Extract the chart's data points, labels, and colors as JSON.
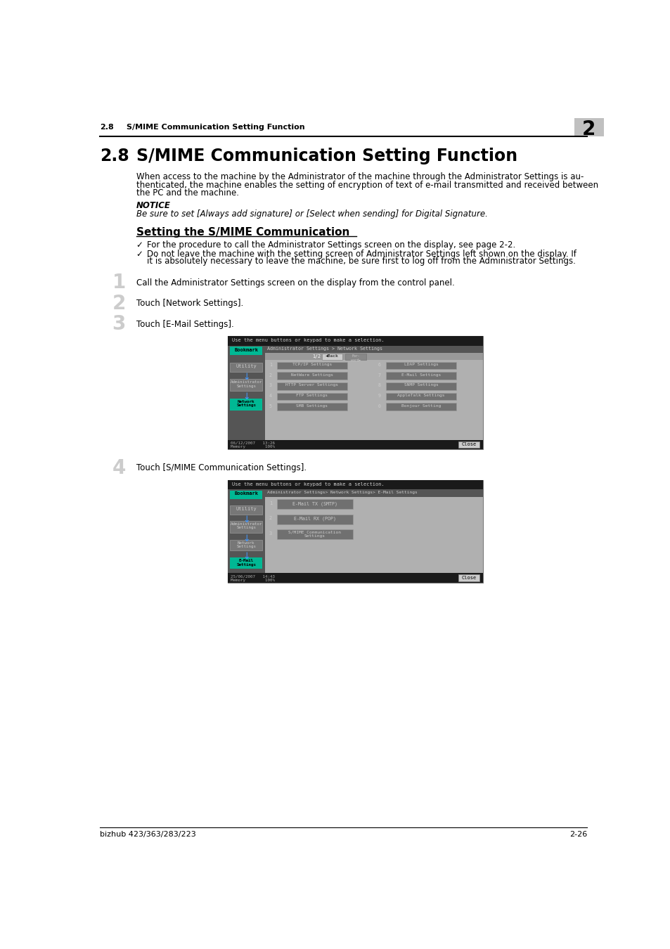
{
  "page_header_number": "2.8",
  "page_header_title": "S/MIME Communication Setting Function",
  "chapter_number": "2",
  "section_number": "2.8",
  "section_title": "S/MIME Communication Setting Function",
  "body_line1": "When access to the machine by the Administrator of the machine through the Administrator Settings is au-",
  "body_line2": "thenticated, the machine enables the setting of encryption of text of e-mail transmitted and received between",
  "body_line3": "the PC and the machine.",
  "notice_label": "NOTICE",
  "notice_text": "Be sure to set [Always add signature] or [Select when sending] for Digital Signature.",
  "subsection_title": "Setting the S/MIME Communication",
  "bullet1": "For the procedure to call the Administrator Settings screen on the display, see page 2-2.",
  "bullet2_line1": "Do not leave the machine with the setting screen of Administrator Settings left shown on the display. If",
  "bullet2_line2": "it is absolutely necessary to leave the machine, be sure first to log off from the Administrator Settings.",
  "step1": "Call the Administrator Settings screen on the display from the control panel.",
  "step2": "Touch [Network Settings].",
  "step3": "Touch [E-Mail Settings].",
  "step4": "Touch [S/MIME Communication Settings].",
  "footer_left": "bizhub 423/363/283/223",
  "footer_right": "2-26",
  "bg_color": "#ffffff",
  "teal_color": "#00b894",
  "dark_bg": "#1a1a1a",
  "mid_bg": "#555555",
  "btn_bg": "#808080",
  "light_btn": "#aaaaaa",
  "screen_bg": "#3d3d3d"
}
